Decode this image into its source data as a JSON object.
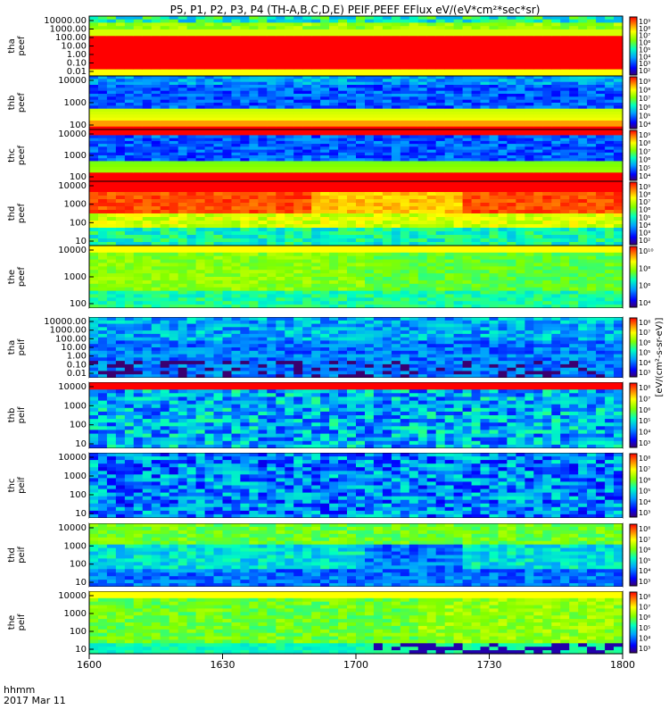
{
  "title": "P5, P1, P2, P3, P4 (TH-A,B,C,D,E) PEIF,PEEF EFlux eV/(eV*cm²*sec*sr)",
  "x_axis": {
    "label_line1": "hhmm",
    "label_line2": "2017 Mar 11",
    "ticks": [
      "1600",
      "1630",
      "1700",
      "1730",
      "1800"
    ]
  },
  "colorbar_label": "[eV/(cm²-s-sr-eV)]",
  "colors": {
    "saturated": "#ff0000",
    "background": "#ffffff",
    "trace": "#000000"
  },
  "chart_data": {
    "type": "heatmap",
    "time_range": [
      "1600",
      "1800"
    ],
    "panels": [
      {
        "name": "tha peef",
        "ylabels": [
          "10000.00",
          "1000.00",
          "100.00",
          "10.00",
          "1.00",
          "0.10",
          "0.01"
        ],
        "clabels": [
          "10⁹",
          "10⁸",
          "10⁷",
          "10⁶",
          "10⁵",
          "10⁴",
          "10³",
          "10²"
        ]
      },
      {
        "name": "thb peef",
        "ylabels": [
          "10000",
          "1000",
          "100"
        ],
        "clabels": [
          "10⁹",
          "10⁸",
          "10⁷",
          "10⁶",
          "10⁵",
          "10⁴"
        ]
      },
      {
        "name": "thc peef",
        "ylabels": [
          "10000",
          "1000",
          "100"
        ],
        "clabels": [
          "10⁹",
          "10⁸",
          "10⁷",
          "10⁶",
          "10⁵",
          "10⁴"
        ]
      },
      {
        "name": "thd peef",
        "ylabels": [
          "10000",
          "1000",
          "100",
          "10"
        ],
        "clabels": [
          "10⁹",
          "10⁸",
          "10⁷",
          "10⁶",
          "10⁵",
          "10⁴",
          "10³",
          "10²"
        ]
      },
      {
        "name": "the peef",
        "ylabels": [
          "10000",
          "1000",
          "100"
        ],
        "clabels": [
          "10¹⁰",
          "10⁸",
          "10⁶",
          "10⁴"
        ]
      },
      {
        "name": "tha peif",
        "ylabels": [
          "10000.00",
          "1000.00",
          "100.00",
          "10.00",
          "1.00",
          "0.10",
          "0.01"
        ],
        "clabels": [
          "10⁸",
          "10⁷",
          "10⁶",
          "10⁵",
          "10⁴",
          "10³"
        ]
      },
      {
        "name": "thb peif",
        "ylabels": [
          "10000",
          "1000",
          "100",
          "10"
        ],
        "clabels": [
          "10⁸",
          "10⁷",
          "10⁶",
          "10⁵",
          "10⁴",
          "10³"
        ]
      },
      {
        "name": "thc peif",
        "ylabels": [
          "10000",
          "1000",
          "100",
          "10"
        ],
        "clabels": [
          "10⁸",
          "10⁷",
          "10⁶",
          "10⁵",
          "10⁴",
          "10³"
        ]
      },
      {
        "name": "thd peif",
        "ylabels": [
          "10000",
          "1000",
          "100",
          "10"
        ],
        "clabels": [
          "10⁸",
          "10⁷",
          "10⁶",
          "10⁵",
          "10⁴",
          "10³"
        ]
      },
      {
        "name": "the peif",
        "ylabels": [
          "10000",
          "1000",
          "100",
          "10"
        ],
        "clabels": [
          "10⁸",
          "10⁷",
          "10⁶",
          "10⁵",
          "10⁴",
          "10³"
        ]
      }
    ]
  }
}
